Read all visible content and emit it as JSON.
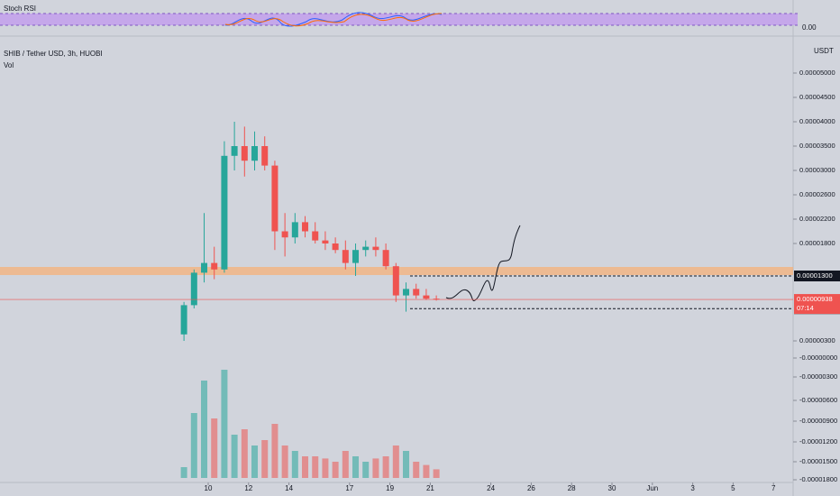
{
  "chart_data": {
    "type": "candlestick",
    "indicator_title": "Stoch RSI",
    "indicator_value": "0.00",
    "title": "SHIB / Tether USD, 3h, HUOBI",
    "volume_title": "Vol",
    "currency": "USDT",
    "up_color": "#26a69a",
    "down_color": "#ef5350",
    "yticks": [
      {
        "value": 5e-05,
        "label": "0.00005000"
      },
      {
        "value": 4.5e-05,
        "label": "0.00004500"
      },
      {
        "value": 4e-05,
        "label": "0.00004000"
      },
      {
        "value": 3.5e-05,
        "label": "0.00003500"
      },
      {
        "value": 3e-05,
        "label": "0.00003000"
      },
      {
        "value": 2.6e-05,
        "label": "0.00002600"
      },
      {
        "value": 2.2e-05,
        "label": "0.00002200"
      },
      {
        "value": 1.8e-05,
        "label": "0.00001800"
      },
      {
        "value": 3e-06,
        "label": "0.00000300"
      },
      {
        "value": 0,
        "label": "-0.00000000"
      },
      {
        "value": -3e-06,
        "label": "-0.00000300"
      },
      {
        "value": -6e-06,
        "label": "-0.00000600"
      },
      {
        "value": -9e-06,
        "label": "-0.00000900"
      },
      {
        "value": -1.2e-05,
        "label": "-0.00001200"
      },
      {
        "value": -1.5e-05,
        "label": "-0.00001500"
      },
      {
        "value": -1.8e-05,
        "label": "-0.00001800"
      }
    ],
    "xticks": [
      10,
      12,
      14,
      17,
      19,
      21,
      24,
      26,
      28,
      30,
      {
        "value": 32,
        "label": "Jun"
      },
      {
        "value": 34,
        "label": "3"
      },
      {
        "value": 36,
        "label": "5"
      },
      {
        "value": 38,
        "label": "7"
      }
    ],
    "price_tags": [
      {
        "value": 1.3e-05,
        "label": "0.00001300"
      },
      {
        "value": 7.97e-06,
        "label": "0.00000797"
      }
    ],
    "last_price": {
      "value": 9.38e-06,
      "label": "0.00000938",
      "countdown": "07:14"
    },
    "candles": {
      "x": [
        8.8,
        9.3,
        9.8,
        10.3,
        10.8,
        11.3,
        11.8,
        12.3,
        12.8,
        13.3,
        13.8,
        14.3,
        14.8,
        15.3,
        15.8,
        16.3,
        16.8,
        17.3,
        17.8,
        18.3,
        18.8,
        19.3,
        19.8,
        20.3,
        20.8,
        21.3
      ],
      "open": [
        4e-06,
        8.5e-06,
        1.35e-05,
        1.5e-05,
        1.4e-05,
        3.3e-05,
        3.5e-05,
        3.2e-05,
        3.5e-05,
        3.1e-05,
        2e-05,
        1.9e-05,
        2.15e-05,
        2e-05,
        1.85e-05,
        1.8e-05,
        1.7e-05,
        1.5e-05,
        1.7e-05,
        1.75e-05,
        1.7e-05,
        1.45e-05,
        1e-05,
        1.1e-05,
        1e-05,
        9.5e-06
      ],
      "high": [
        9e-06,
        1.4e-05,
        2.3e-05,
        1.75e-05,
        3.6e-05,
        4e-05,
        3.9e-05,
        3.8e-05,
        3.7e-05,
        3.2e-05,
        2.3e-05,
        2.3e-05,
        2.25e-05,
        2.15e-05,
        2e-05,
        1.9e-05,
        1.85e-05,
        1.8e-05,
        1.85e-05,
        1.9e-05,
        1.8e-05,
        1.5e-05,
        1.2e-05,
        1.18e-05,
        1.1e-05,
        1e-05
      ],
      "low": [
        3e-06,
        8e-06,
        1.2e-05,
        1.25e-05,
        1.35e-05,
        3e-05,
        2.9e-05,
        3e-05,
        3e-05,
        1.7e-05,
        1.6e-05,
        1.8e-05,
        1.9e-05,
        1.8e-05,
        1.7e-05,
        1.65e-05,
        1.4e-05,
        1.3e-05,
        1.6e-05,
        1.6e-05,
        1.4e-05,
        9e-06,
        7.5e-06,
        9.5e-06,
        9.3e-06,
        9.2e-06
      ],
      "close": [
        8.5e-06,
        1.35e-05,
        1.5e-05,
        1.4e-05,
        3.3e-05,
        3.5e-05,
        3.2e-05,
        3.5e-05,
        3.1e-05,
        2e-05,
        1.9e-05,
        2.15e-05,
        2e-05,
        1.85e-05,
        1.8e-05,
        1.7e-05,
        1.5e-05,
        1.7e-05,
        1.75e-05,
        1.7e-05,
        1.45e-05,
        1e-05,
        1.1e-05,
        1e-05,
        9.5e-06,
        9.4e-06
      ],
      "volume": [
        10,
        60,
        90,
        55,
        100,
        40,
        45,
        30,
        35,
        50,
        30,
        25,
        20,
        20,
        18,
        15,
        25,
        20,
        15,
        18,
        20,
        30,
        25,
        15,
        12,
        8
      ]
    }
  }
}
